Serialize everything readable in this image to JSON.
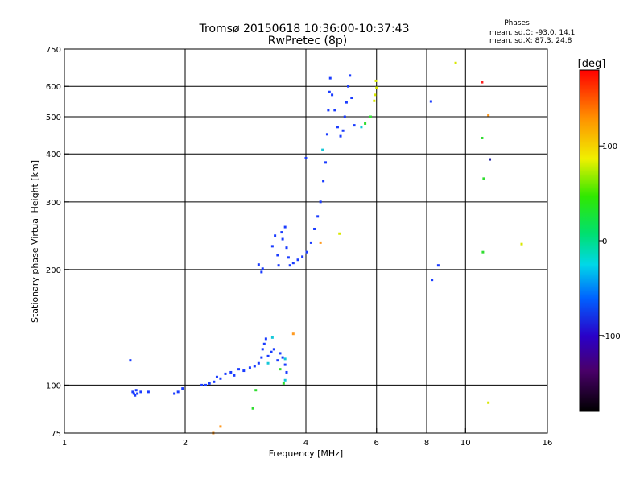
{
  "chart_data": {
    "type": "scatter",
    "title": "Tromsø 20150618 10:36:00-10:37:43",
    "subtitle": "RwPretec (8p)",
    "xlabel": "Frequency [MHz]",
    "ylabel": "Stationary phase Virtual Height [km]",
    "x_scale": "log",
    "y_scale": "log",
    "xlim": [
      1,
      16
    ],
    "ylim": [
      75,
      750
    ],
    "x_ticks": [
      1,
      2,
      4,
      6,
      8,
      10,
      16
    ],
    "x_tick_labels": [
      "1",
      "2",
      "4",
      "6",
      "8",
      "10",
      "16"
    ],
    "y_ticks": [
      75,
      100,
      200,
      300,
      400,
      500,
      600,
      750
    ],
    "y_tick_labels": [
      "75",
      "100",
      "200",
      "300",
      "400",
      "500",
      "600",
      "750"
    ],
    "grid": true,
    "phases_note": {
      "title": "Phases",
      "line1": "mean, sd,O: -93.0, 14.1",
      "line2": "mean, sd,X:  87.3, 24.8"
    },
    "colorbar": {
      "label": "[deg]",
      "range": [
        -180,
        180
      ],
      "ticks": [
        100,
        0,
        -100
      ],
      "tick_labels": [
        "100",
        "0",
        "-100"
      ]
    },
    "series": [
      {
        "color": "#1a3cff",
        "points": [
          [
            1.46,
            116
          ],
          [
            1.48,
            96
          ],
          [
            1.49,
            95
          ],
          [
            1.5,
            94
          ],
          [
            1.51,
            97
          ],
          [
            1.52,
            95
          ],
          [
            1.55,
            96
          ],
          [
            1.62,
            96
          ],
          [
            1.88,
            95
          ],
          [
            1.92,
            96
          ],
          [
            1.97,
            98
          ],
          [
            2.2,
            100
          ],
          [
            2.25,
            100
          ],
          [
            2.3,
            101
          ],
          [
            2.36,
            102
          ],
          [
            2.4,
            105
          ],
          [
            2.45,
            104
          ],
          [
            2.52,
            107
          ],
          [
            2.6,
            108
          ],
          [
            2.65,
            106
          ],
          [
            2.72,
            110
          ],
          [
            2.8,
            109
          ],
          [
            2.9,
            111
          ],
          [
            2.98,
            112
          ],
          [
            3.05,
            114
          ],
          [
            3.1,
            118
          ],
          [
            3.12,
            124
          ],
          [
            3.15,
            128
          ],
          [
            3.18,
            132
          ],
          [
            3.22,
            119
          ],
          [
            3.28,
            122
          ],
          [
            3.33,
            124
          ],
          [
            3.4,
            116
          ],
          [
            3.45,
            121
          ],
          [
            3.5,
            118
          ],
          [
            3.55,
            113
          ],
          [
            3.58,
            108
          ],
          [
            3.05,
            206
          ],
          [
            3.1,
            197
          ],
          [
            3.12,
            201
          ],
          [
            3.3,
            230
          ],
          [
            3.35,
            245
          ],
          [
            3.4,
            218
          ],
          [
            3.42,
            205
          ],
          [
            3.48,
            250
          ],
          [
            3.5,
            240
          ],
          [
            3.55,
            258
          ],
          [
            3.58,
            228
          ],
          [
            3.62,
            215
          ],
          [
            3.65,
            205
          ],
          [
            3.72,
            208
          ],
          [
            3.82,
            212
          ],
          [
            3.92,
            216
          ],
          [
            4.0,
            390
          ],
          [
            4.02,
            222
          ],
          [
            4.12,
            235
          ],
          [
            4.2,
            255
          ],
          [
            4.28,
            275
          ],
          [
            4.35,
            300
          ],
          [
            4.42,
            340
          ],
          [
            4.48,
            380
          ],
          [
            4.52,
            450
          ],
          [
            4.55,
            520
          ],
          [
            4.58,
            580
          ],
          [
            4.6,
            630
          ],
          [
            4.65,
            570
          ],
          [
            4.72,
            520
          ],
          [
            4.8,
            470
          ],
          [
            4.88,
            445
          ],
          [
            4.95,
            460
          ],
          [
            5.0,
            500
          ],
          [
            5.05,
            545
          ],
          [
            5.1,
            600
          ],
          [
            5.15,
            640
          ],
          [
            5.2,
            560
          ],
          [
            5.28,
            475
          ],
          [
            8.2,
            548
          ],
          [
            8.25,
            188
          ],
          [
            8.55,
            205
          ]
        ]
      },
      {
        "color": "#15c8d8",
        "points": [
          [
            3.3,
            133
          ],
          [
            3.22,
            114
          ],
          [
            3.55,
            103
          ],
          [
            3.55,
            117
          ],
          [
            4.4,
            410
          ],
          [
            5.5,
            470
          ]
        ]
      },
      {
        "color": "#30dd30",
        "points": [
          [
            2.95,
            87
          ],
          [
            3.0,
            97
          ],
          [
            3.52,
            101
          ],
          [
            3.45,
            110
          ],
          [
            5.62,
            480
          ],
          [
            5.8,
            500
          ],
          [
            11.0,
            440
          ],
          [
            11.1,
            345
          ],
          [
            11.05,
            222
          ]
        ]
      },
      {
        "color": "#d8e800",
        "points": [
          [
            4.85,
            248
          ],
          [
            5.92,
            550
          ],
          [
            5.95,
            570
          ],
          [
            5.98,
            620
          ],
          [
            6.0,
            595
          ],
          [
            9.45,
            690
          ],
          [
            11.4,
            90
          ],
          [
            13.8,
            233
          ]
        ]
      },
      {
        "color": "#ff9a20",
        "points": [
          [
            2.45,
            78
          ],
          [
            2.35,
            75
          ],
          [
            3.72,
            136
          ],
          [
            4.35,
            235
          ],
          [
            11.4,
            505
          ]
        ]
      },
      {
        "color": "#ff2020",
        "points": [
          [
            11.0,
            615
          ]
        ]
      },
      {
        "color": "#2020a0",
        "points": [
          [
            11.5,
            387
          ]
        ]
      }
    ]
  }
}
